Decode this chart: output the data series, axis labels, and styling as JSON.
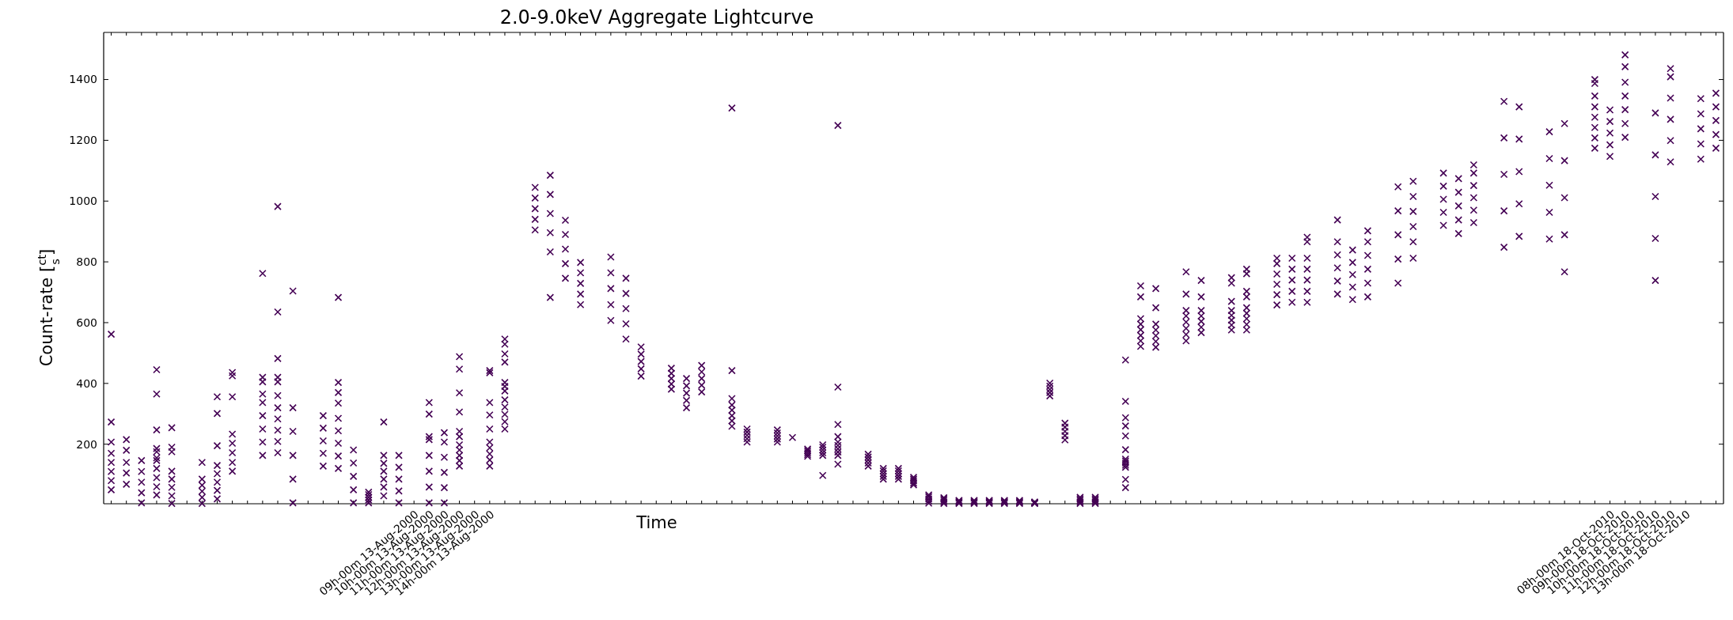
{
  "chart_data": {
    "type": "scatter",
    "title": "2.0-9.0keV Aggregate Lightcurve",
    "xlabel": "Time",
    "ylabel": "Count-rate [$^{ct}$$_{s}$]",
    "marker": "cross",
    "categories": [
      null,
      null,
      null,
      null,
      null,
      null,
      null,
      null,
      null,
      null,
      null,
      null,
      null,
      null,
      null,
      null,
      null,
      null,
      null,
      null,
      "09h-00m 13-Aug-2000",
      "10h-00m 13-Aug-2000",
      "11h-00m 13-Aug-2000",
      "12h-00m 13-Aug-2000",
      "13h-00m 13-Aug-2000",
      "14h-00m 13-Aug-2000",
      null,
      null,
      null,
      null,
      null,
      null,
      null,
      null,
      null,
      null,
      null,
      null,
      null,
      null,
      null,
      null,
      null,
      null,
      null,
      null,
      null,
      null,
      null,
      null,
      null,
      null,
      null,
      null,
      null,
      null,
      null,
      null,
      null,
      null,
      null,
      null,
      null,
      null,
      null,
      null,
      null,
      null,
      null,
      null,
      null,
      null,
      null,
      null,
      null,
      null,
      null,
      null,
      null,
      null,
      null,
      null,
      null,
      null,
      null,
      null,
      null,
      null,
      null,
      null,
      null,
      null,
      null,
      null,
      null,
      null,
      null,
      null,
      null,
      "08h-00m 18-Oct-2010",
      "09h-00m 18-Oct-2010",
      "10h-00m 18-Oct-2010",
      "11h-00m 18-Oct-2010",
      "12h-00m 18-Oct-2010",
      "13h-00m 18-Oct-2010",
      null,
      null
    ],
    "ylim": [
      4,
      1555
    ],
    "yticks": [
      200,
      400,
      600,
      800,
      1000,
      1200,
      1400
    ],
    "series": [
      {
        "color": "#440154",
        "values": [
          50,
          68,
          7,
          33,
          5,
          null,
          5,
          20,
          111,
          null,
          163,
          172,
          7,
          null,
          128,
          120,
          7,
          7,
          59,
          7,
          null,
          7,
          7,
          128,
          null,
          128,
          250,
          null,
          905,
          833,
          746,
          659,
          null,
          607,
          546,
          424,
          null,
          381,
          320,
          372,
          null,
          259,
          207,
          null,
          207,
          null,
          160,
          163,
          163,
          null,
          128,
          85,
          85,
          66,
          6,
          5,
          5,
          5,
          5,
          5,
          5,
          5,
          359,
          214,
          5,
          5,
          null,
          124,
          522,
          519,
          null,
          540,
          567,
          null,
          576,
          576,
          null,
          658,
          667,
          667,
          null,
          694,
          676,
          685,
          null,
          730,
          866,
          null,
          920,
          893,
          929,
          null,
          848,
          884,
          null,
          875,
          767,
          null,
          1174,
          1147,
          1210,
          null,
          739,
          1129,
          null,
          1138,
          1174
        ]
      },
      {
        "color": "#440154",
        "values": [
          80,
          105,
          40,
          60,
          30,
          null,
          25,
          48,
          140,
          null,
          207,
          209,
          85,
          null,
          170,
          161,
          50,
          16,
          85,
          46,
          null,
          59,
          57,
          146,
          null,
          148,
          274,
          null,
          940,
          896,
          794,
          694,
          null,
          659,
          596,
          448,
          null,
          398,
          344,
          394,
          null,
          277,
          218,
          null,
          217,
          null,
          166,
          172,
          174,
          null,
          138,
          94,
          94,
          72,
          13,
          10,
          8,
          8,
          8,
          8,
          8,
          6,
          370,
          228,
          10,
          10,
          null,
          131,
          540,
          538,
          null,
          561,
          585,
          null,
          592,
          594,
          null,
          692,
          703,
          703,
          null,
          737,
          717,
          730,
          null,
          809,
          916,
          null,
          963,
          938,
          970,
          null,
          968,
          991,
          null,
          963,
          889,
          null,
          1208,
          1185,
          1255,
          null,
          877,
          1199,
          null,
          1188,
          1219
        ]
      },
      {
        "color": "#440154",
        "values": [
          110,
          140,
          75,
          90,
          58,
          null,
          45,
          75,
          172,
          null,
          250,
          246,
          163,
          null,
          211,
          203,
          94,
          25,
          111,
          85,
          null,
          111,
          107,
          163,
          null,
          168,
          298,
          null,
          975,
          959,
          842,
          729,
          null,
          712,
          646,
          472,
          null,
          416,
          368,
          416,
          null,
          294,
          229,
          null,
          227,
          null,
          172,
          181,
          185,
          null,
          148,
          103,
          103,
          79,
          20,
          15,
          10,
          10,
          10,
          10,
          10,
          8,
          380,
          242,
          15,
          15,
          null,
          138,
          558,
          557,
          null,
          581,
          604,
          null,
          608,
          613,
          null,
          726,
          740,
          740,
          null,
          780,
          758,
          776,
          null,
          889,
          966,
          null,
          1006,
          984,
          1011,
          null,
          1088,
          1097,
          null,
          1052,
          1011,
          null,
          1242,
          1224,
          1301,
          null,
          1015,
          1269,
          null,
          1238,
          1265
        ]
      },
      {
        "color": "#440154",
        "values": [
          140,
          180,
          110,
          120,
          85,
          null,
          65,
          103,
          203,
          null,
          294,
          283,
          242,
          null,
          253,
          244,
          138,
          34,
          137,
          124,
          null,
          163,
          157,
          181,
          null,
          188,
          322,
          null,
          1010,
          1022,
          890,
          764,
          null,
          764,
          696,
          496,
          null,
          433,
          392,
          438,
          null,
          312,
          240,
          null,
          237,
          null,
          178,
          190,
          196,
          null,
          158,
          112,
          112,
          85,
          27,
          20,
          13,
          13,
          13,
          13,
          13,
          9,
          391,
          256,
          20,
          20,
          null,
          145,
          577,
          576,
          null,
          602,
          622,
          null,
          624,
          631,
          null,
          760,
          776,
          776,
          null,
          823,
          798,
          821,
          null,
          968,
          1015,
          null,
          1049,
          1029,
          1051,
          null,
          1208,
          1204,
          null,
          1140,
          1133,
          null,
          1276,
          1262,
          1346,
          null,
          1152,
          1339,
          null,
          1287,
          1310
        ]
      },
      {
        "color": "#440154",
        "values": [
          170,
          215,
          146,
          146,
          111,
          null,
          85,
          130,
          233,
          null,
          337,
          320,
          320,
          null,
          294,
          285,
          181,
          42,
          163,
          163,
          null,
          215,
          207,
          198,
          null,
          207,
          346,
          null,
          1045,
          1085,
          937,
          798,
          null,
          816,
          746,
          520,
          null,
          450,
          416,
          459,
          null,
          329,
          250,
          null,
          247,
          null,
          184,
          198,
          207,
          null,
          167,
          120,
          120,
          91,
          33,
          24,
          15,
          15,
          15,
          15,
          15,
          10,
          401,
          269,
          25,
          25,
          null,
          151,
          595,
          595,
          null,
          622,
          640,
          null,
          640,
          649,
          null,
          794,
          812,
          812,
          null,
          866,
          839,
          866,
          null,
          1047,
          1065,
          null,
          1092,
          1074,
          1092,
          null,
          1328,
          1310,
          null,
          1228,
          1255,
          null,
          1310,
          1300,
          1391,
          null,
          1290,
          1409,
          null,
          1337,
          1355
        ]
      },
      {
        "color": "#440154",
        "values": [
          207,
          null,
          null,
          155,
          175,
          null,
          140,
          195,
          356,
          null,
          365,
          360,
          704,
          null,
          null,
          335,
          null,
          null,
          30,
          null,
          null,
          225,
          238,
          225,
          null,
          250,
          375,
          null,
          null,
          683,
          null,
          null,
          null,
          null,
          null,
          null,
          null,
          null,
          null,
          null,
          null,
          350,
          null,
          null,
          null,
          222,
          null,
          97,
          134,
          null,
          null,
          null,
          null,
          null,
          null,
          null,
          null,
          null,
          null,
          null,
          null,
          null,
          null,
          null,
          null,
          null,
          null,
          57,
          613,
          649,
          null,
          640,
          685,
          null,
          670,
          685,
          null,
          812,
          null,
          866,
          null,
          938,
          null,
          902,
          null,
          null,
          812,
          null,
          null,
          null,
          1119,
          null,
          null,
          null,
          null,
          null,
          null,
          null,
          1346,
          null,
          1442,
          null,
          null,
          1436,
          null,
          null,
          null
        ]
      },
      {
        "color": "#440154",
        "values": [
          273,
          null,
          null,
          175,
          190,
          null,
          null,
          301,
          425,
          null,
          405,
          405,
          null,
          null,
          null,
          370,
          null,
          null,
          273,
          null,
          null,
          299,
          null,
          242,
          null,
          296,
          390,
          null,
          null,
          null,
          null,
          null,
          null,
          null,
          null,
          null,
          null,
          null,
          null,
          null,
          null,
          442,
          null,
          null,
          null,
          null,
          null,
          null,
          225,
          null,
          null,
          null,
          null,
          null,
          null,
          null,
          null,
          null,
          null,
          null,
          null,
          null,
          null,
          null,
          null,
          null,
          null,
          84,
          685,
          712,
          null,
          694,
          739,
          null,
          730,
          703,
          null,
          null,
          null,
          881,
          null,
          null,
          null,
          null,
          null,
          null,
          null,
          null,
          null,
          null,
          null,
          null,
          null,
          null,
          null,
          null,
          null,
          null,
          1387,
          null,
          1481,
          null,
          null,
          null,
          null,
          null,
          null
        ]
      },
      {
        "color": "#440154",
        "values": [
          562,
          null,
          null,
          186,
          254,
          null,
          null,
          356,
          436,
          null,
          420,
          420,
          null,
          null,
          null,
          403,
          null,
          null,
          null,
          null,
          null,
          337,
          null,
          306,
          null,
          337,
          403,
          null,
          null,
          null,
          null,
          null,
          null,
          null,
          null,
          null,
          null,
          null,
          null,
          null,
          null,
          1306,
          null,
          null,
          null,
          null,
          null,
          null,
          265,
          null,
          null,
          null,
          null,
          null,
          null,
          null,
          null,
          null,
          null,
          null,
          null,
          null,
          null,
          null,
          null,
          null,
          null,
          182,
          721,
          null,
          null,
          767,
          null,
          null,
          748,
          761,
          null,
          null,
          null,
          null,
          null,
          null,
          null,
          null,
          null,
          null,
          null,
          null,
          null,
          null,
          null,
          null,
          null,
          null,
          null,
          null,
          null,
          null,
          1400,
          null,
          null,
          null,
          null,
          null,
          null,
          null,
          null
        ]
      },
      {
        "color": "#440154",
        "values": [
          null,
          null,
          null,
          247,
          null,
          null,
          null,
          null,
          null,
          null,
          762,
          482,
          null,
          null,
          null,
          683,
          null,
          null,
          null,
          null,
          null,
          null,
          null,
          369,
          null,
          435,
          470,
          null,
          null,
          null,
          null,
          null,
          null,
          null,
          null,
          null,
          null,
          null,
          null,
          null,
          null,
          null,
          null,
          null,
          null,
          null,
          null,
          null,
          388,
          null,
          null,
          null,
          null,
          null,
          null,
          null,
          null,
          null,
          null,
          null,
          null,
          null,
          null,
          null,
          null,
          null,
          null,
          227,
          null,
          null,
          null,
          null,
          null,
          null,
          null,
          776,
          null,
          null,
          null,
          null,
          null,
          null,
          null,
          null,
          null,
          null,
          null,
          null,
          null,
          null,
          null,
          null,
          null,
          null,
          null,
          null,
          null,
          null,
          null,
          null,
          null,
          null,
          null,
          null,
          null,
          null,
          null
        ]
      },
      {
        "color": "#440154",
        "values": [
          null,
          null,
          null,
          365,
          null,
          null,
          null,
          null,
          null,
          null,
          null,
          635,
          null,
          null,
          null,
          null,
          null,
          null,
          null,
          null,
          null,
          null,
          null,
          447,
          null,
          442,
          497,
          null,
          null,
          null,
          null,
          null,
          null,
          null,
          null,
          null,
          null,
          null,
          null,
          null,
          null,
          null,
          null,
          null,
          null,
          null,
          null,
          null,
          1249,
          null,
          null,
          null,
          null,
          null,
          null,
          null,
          null,
          null,
          null,
          null,
          null,
          null,
          null,
          null,
          null,
          null,
          null,
          260,
          null,
          null,
          null,
          null,
          null,
          null,
          null,
          null,
          null,
          null,
          null,
          null,
          null,
          null,
          null,
          null,
          null,
          null,
          null,
          null,
          null,
          null,
          null,
          null,
          null,
          null,
          null,
          null,
          null,
          null,
          null,
          null,
          null,
          null,
          null,
          null,
          null,
          null,
          null
        ]
      },
      {
        "color": "#440154",
        "values": [
          null,
          null,
          null,
          445,
          null,
          null,
          null,
          null,
          null,
          null,
          null,
          982,
          null,
          null,
          null,
          null,
          null,
          null,
          null,
          null,
          null,
          null,
          null,
          488,
          null,
          null,
          529,
          null,
          null,
          null,
          null,
          null,
          null,
          null,
          null,
          null,
          null,
          null,
          null,
          null,
          null,
          null,
          null,
          null,
          null,
          null,
          null,
          null,
          null,
          null,
          null,
          null,
          null,
          null,
          null,
          null,
          null,
          null,
          null,
          null,
          null,
          null,
          null,
          null,
          null,
          null,
          null,
          287,
          null,
          null,
          null,
          null,
          null,
          null,
          null,
          null,
          null,
          null,
          null,
          null,
          null,
          null,
          null,
          null,
          null,
          null,
          null,
          null,
          null,
          null,
          null,
          null,
          null,
          null,
          null,
          null,
          null,
          null,
          null,
          null,
          null,
          null,
          null,
          null,
          null,
          null,
          null
        ]
      },
      {
        "color": "#440154",
        "values": [
          null,
          null,
          null,
          null,
          null,
          null,
          null,
          null,
          null,
          null,
          null,
          null,
          null,
          null,
          null,
          null,
          null,
          null,
          null,
          null,
          null,
          null,
          null,
          null,
          null,
          null,
          546,
          null,
          null,
          null,
          null,
          null,
          null,
          null,
          null,
          null,
          null,
          null,
          null,
          null,
          null,
          null,
          null,
          null,
          null,
          null,
          null,
          null,
          null,
          null,
          null,
          null,
          null,
          null,
          null,
          null,
          null,
          null,
          null,
          null,
          null,
          null,
          null,
          null,
          null,
          null,
          null,
          341,
          null,
          null,
          null,
          null,
          null,
          null,
          null,
          null,
          null,
          null,
          null,
          null,
          null,
          null,
          null,
          null,
          null,
          null,
          null,
          null,
          null,
          null,
          null,
          null,
          null,
          null,
          null,
          null,
          null,
          null,
          null,
          null,
          null,
          null,
          null,
          null,
          null,
          null,
          null
        ]
      },
      {
        "color": "#440154",
        "values": [
          null,
          null,
          null,
          null,
          null,
          null,
          null,
          null,
          null,
          null,
          null,
          null,
          null,
          null,
          null,
          null,
          null,
          null,
          null,
          null,
          null,
          null,
          null,
          null,
          null,
          null,
          null,
          null,
          null,
          null,
          null,
          null,
          null,
          null,
          null,
          null,
          null,
          null,
          null,
          null,
          null,
          null,
          null,
          null,
          null,
          null,
          null,
          null,
          null,
          null,
          null,
          null,
          null,
          null,
          null,
          null,
          null,
          null,
          null,
          null,
          null,
          null,
          null,
          null,
          null,
          null,
          null,
          477,
          null,
          null,
          null,
          null,
          null,
          null,
          null,
          null,
          null,
          null,
          null,
          null,
          null,
          null,
          null,
          null,
          null,
          null,
          null,
          null,
          null,
          null,
          null,
          null,
          null,
          null,
          null,
          null,
          null,
          null,
          null,
          null,
          null,
          null,
          null,
          null,
          null,
          null,
          null
        ]
      }
    ]
  }
}
